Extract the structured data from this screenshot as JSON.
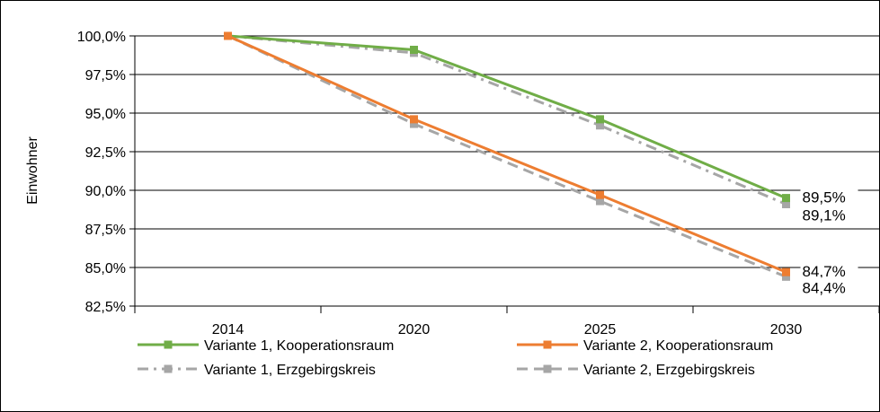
{
  "chart_data": {
    "type": "line",
    "title": "",
    "xlabel": "",
    "ylabel": "Einwohner",
    "categories": [
      "2014",
      "2020",
      "2025",
      "2030"
    ],
    "ylim": [
      82.5,
      100.0
    ],
    "yticks": [
      100.0,
      97.5,
      95.0,
      92.5,
      90.0,
      87.5,
      85.0,
      82.5
    ],
    "ytick_labels": [
      "100,0%",
      "97,5%",
      "95,0%",
      "92,5%",
      "90,0%",
      "87,5%",
      "85,0%",
      "82,5%"
    ],
    "grid": "horizontal",
    "legend_position": "bottom",
    "series": [
      {
        "name": "Variante 1, Kooperationsraum",
        "values": [
          100.0,
          99.1,
          94.6,
          89.5
        ],
        "color": "#70ad47",
        "style": "solid"
      },
      {
        "name": "Variante 2, Kooperationsraum",
        "values": [
          100.0,
          94.6,
          89.7,
          84.7
        ],
        "color": "#ed7d31",
        "style": "solid"
      },
      {
        "name": "Variante 1, Erzgebirgskreis",
        "values": [
          100.0,
          98.9,
          94.2,
          89.1
        ],
        "color": "#a6a6a6",
        "style": "dashdot"
      },
      {
        "name": "Variante 2, Erzgebirgskreis",
        "values": [
          100.0,
          94.3,
          89.3,
          84.4
        ],
        "color": "#a6a6a6",
        "style": "dash"
      }
    ],
    "annotations": [
      {
        "text": "89,5%",
        "series": 0,
        "value": 89.5
      },
      {
        "text": "89,1%",
        "series": 2,
        "value": 89.1
      },
      {
        "text": "84,7%",
        "series": 1,
        "value": 84.7
      },
      {
        "text": "84,4%",
        "series": 3,
        "value": 84.4
      }
    ]
  }
}
